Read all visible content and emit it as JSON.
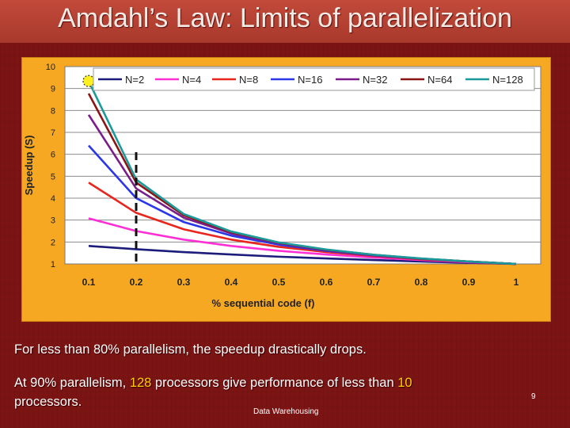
{
  "slide": {
    "title": "Amdahl’s Law: Limits of parallelization",
    "bullet1": "For less than 80% parallelism, the speedup drastically drops.",
    "bullet2_parts": [
      "At  90% parallelism, ",
      "128",
      " processors give performance of less than ",
      "10",
      " processors."
    ],
    "footer": "Data Warehousing",
    "page_number": "9"
  },
  "colors": {
    "plot_bg": "#ffffff",
    "panel_bg": "#f7a823",
    "highlight_text": "#ffcc00"
  },
  "chart_data": {
    "type": "line",
    "xlabel": "% sequential code (f)",
    "ylabel": "Speedup (S)",
    "xlim": [
      0.1,
      1
    ],
    "ylim": [
      1,
      10
    ],
    "x": [
      0.1,
      0.2,
      0.3,
      0.4,
      0.5,
      0.6,
      0.7,
      0.8,
      0.9,
      1
    ],
    "x_tick_labels": [
      "0.1",
      "0.2",
      "0.3",
      "0.4",
      "0.5",
      "0.6",
      "0.7",
      "0.8",
      "0.9",
      "1"
    ],
    "y_ticks": [
      1,
      2,
      3,
      4,
      5,
      6,
      7,
      8,
      9,
      10
    ],
    "legend_position": "top",
    "series": [
      {
        "name": "N=2",
        "color": "#1c1c7a",
        "values": [
          1.82,
          1.67,
          1.54,
          1.43,
          1.33,
          1.25,
          1.18,
          1.11,
          1.05,
          1.0
        ]
      },
      {
        "name": "N=4",
        "color": "#ff2fd6",
        "values": [
          3.08,
          2.5,
          2.11,
          1.82,
          1.6,
          1.43,
          1.29,
          1.18,
          1.08,
          1.0
        ]
      },
      {
        "name": "N=8",
        "color": "#e8261e",
        "values": [
          4.71,
          3.33,
          2.58,
          2.11,
          1.78,
          1.54,
          1.36,
          1.21,
          1.1,
          1.0
        ]
      },
      {
        "name": "N=16",
        "color": "#2a36e8",
        "values": [
          6.4,
          4.0,
          2.91,
          2.29,
          1.88,
          1.6,
          1.39,
          1.23,
          1.1,
          1.0
        ]
      },
      {
        "name": "N=32",
        "color": "#7a1c8a",
        "values": [
          7.8,
          4.44,
          3.11,
          2.39,
          1.94,
          1.63,
          1.41,
          1.24,
          1.11,
          1.0
        ]
      },
      {
        "name": "N=64",
        "color": "#8b1414",
        "values": [
          8.77,
          4.71,
          3.22,
          2.45,
          1.97,
          1.65,
          1.42,
          1.24,
          1.11,
          1.0
        ]
      },
      {
        "name": "N=128",
        "color": "#1a9a9a",
        "values": [
          9.34,
          4.85,
          3.28,
          2.48,
          1.98,
          1.66,
          1.42,
          1.25,
          1.11,
          1.0
        ]
      }
    ],
    "annotations": {
      "dashed_vertical_line_x": 0.2,
      "highlight_point": {
        "x": 0.1,
        "y": 9.34
      }
    }
  }
}
